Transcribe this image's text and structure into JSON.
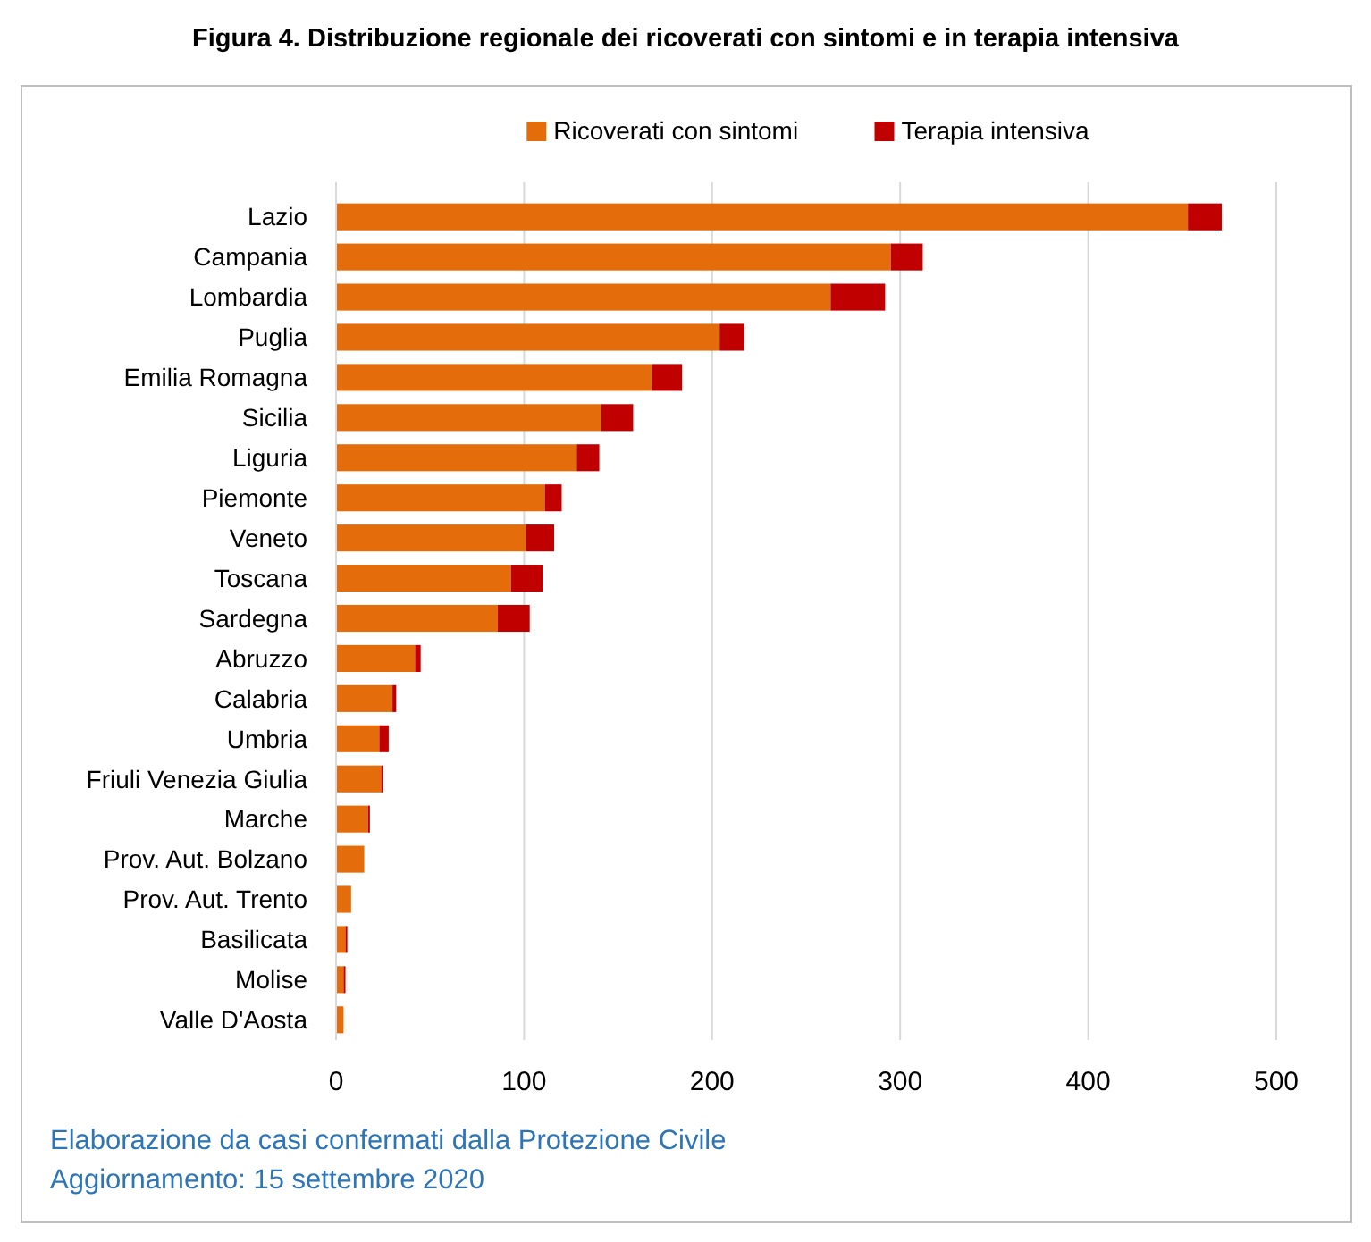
{
  "chart_data": {
    "type": "bar",
    "orientation": "horizontal",
    "stacked": true,
    "title": "Figura 4. Distribuzione regionale dei ricoverati con sintomi e in terapia intensiva",
    "categories": [
      "Lazio",
      "Campania",
      "Lombardia",
      "Puglia",
      "Emilia Romagna",
      "Sicilia",
      "Liguria",
      "Piemonte",
      "Veneto",
      "Toscana",
      "Sardegna",
      "Abruzzo",
      "Calabria",
      "Umbria",
      "Friuli Venezia Giulia",
      "Marche",
      "Prov. Aut. Bolzano",
      "Prov. Aut. Trento",
      "Basilicata",
      "Molise",
      "Valle D'Aosta"
    ],
    "series": [
      {
        "name": "Ricoverati con sintomi",
        "color": "#e46c0a",
        "values": [
          453,
          295,
          263,
          204,
          168,
          141,
          128,
          111,
          101,
          93,
          86,
          42,
          30,
          23,
          24,
          17,
          15,
          8,
          5,
          4,
          4
        ]
      },
      {
        "name": "Terapia intensiva",
        "color": "#c00000",
        "values": [
          18,
          17,
          29,
          13,
          16,
          17,
          12,
          9,
          15,
          17,
          17,
          3,
          2,
          5,
          1,
          1,
          0,
          0,
          1,
          1,
          0
        ]
      }
    ],
    "xlim": [
      0,
      500
    ],
    "xticks": [
      0,
      100,
      200,
      300,
      400,
      500
    ],
    "grid": "x",
    "legend": "top",
    "annotations": [
      "Elaborazione da casi confermati dalla Protezione Civile",
      "Aggiornamento: 15 settembre 2020"
    ]
  }
}
